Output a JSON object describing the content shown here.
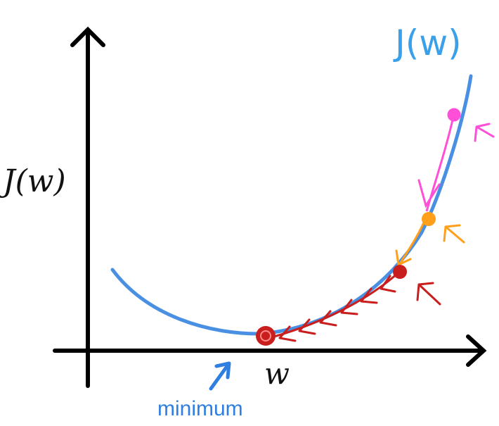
{
  "labels": {
    "curve_label": "J(w)",
    "y_axis_label": "J(w)",
    "x_axis_label": "w",
    "minimum_caption": "minimum"
  },
  "colors": {
    "axes": "#000000",
    "curve": "#4a90e2",
    "curve_label": "#3aa0ea",
    "minimum_caption": "#2f7fe0",
    "step_1": "#ff4fd8",
    "step_2": "#ff9f1a",
    "step_3": "#c81e1e",
    "minimum_point": "#c81e1e"
  },
  "icons": [
    "pink-arrow-icon",
    "orange-arrow-icon",
    "red-arrow-icon",
    "blue-arrow-icon"
  ]
}
